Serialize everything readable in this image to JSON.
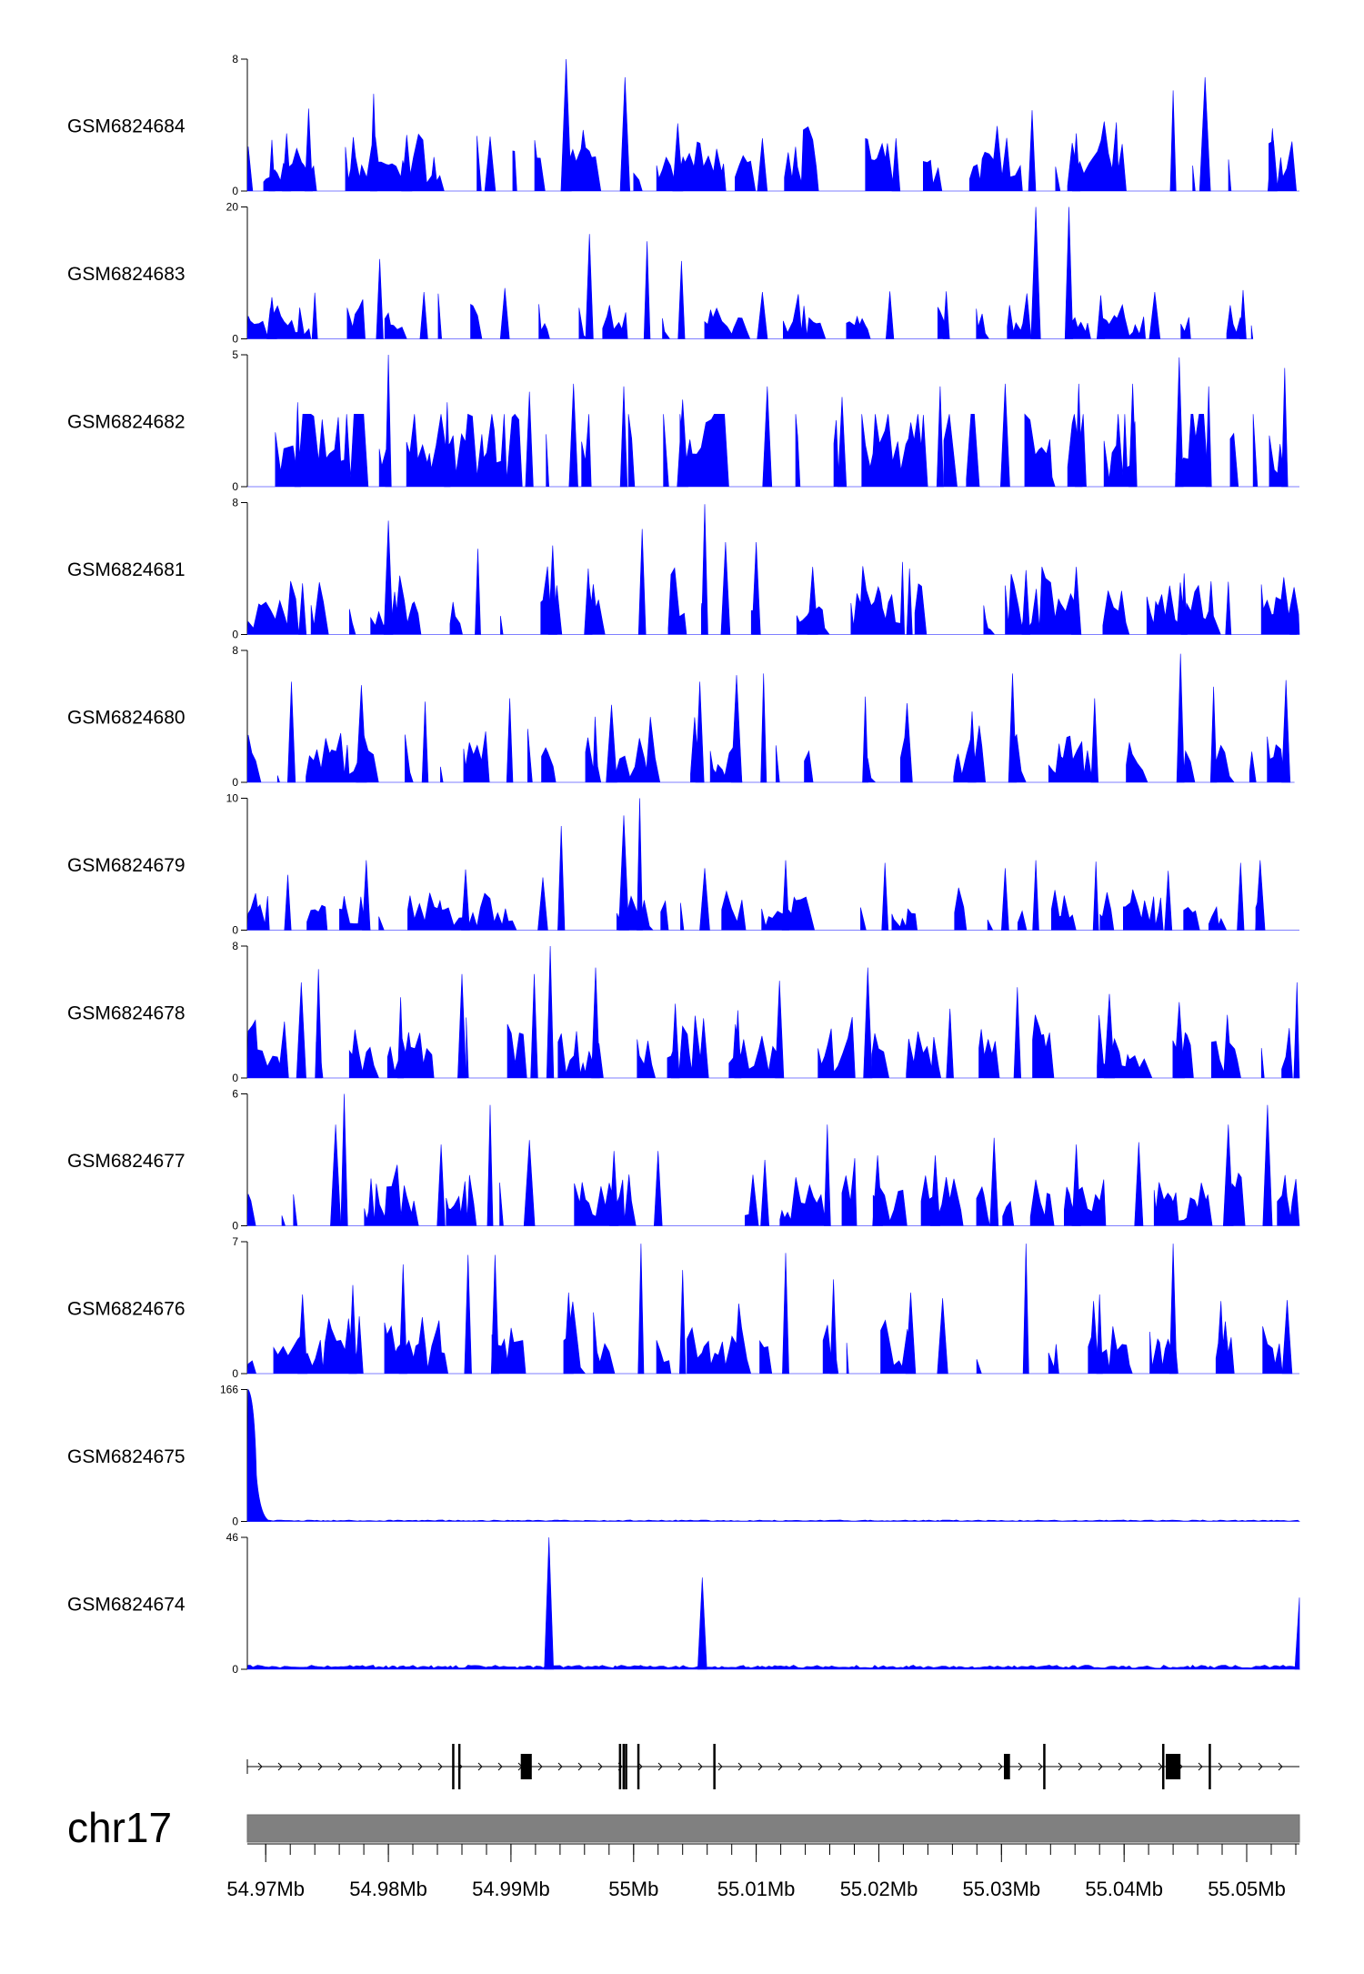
{
  "colors": {
    "signal": "#0000ff",
    "axis": "#000000",
    "ideogram": "#808080",
    "background": "#ffffff"
  },
  "chromosome": "chr17",
  "chart_data": {
    "type": "area",
    "title": "",
    "xlabel": "",
    "ylabel": "",
    "x_range": [
      54.9685,
      55.0543
    ],
    "x_unit": "Mb",
    "x_ticks": [
      54.97,
      54.98,
      54.99,
      55.0,
      55.01,
      55.02,
      55.03,
      55.04,
      55.05
    ],
    "x_tick_labels": [
      "54.97Mb",
      "54.98Mb",
      "54.99Mb",
      "55Mb",
      "55.01Mb",
      "55.02Mb",
      "55.03Mb",
      "55.04Mb",
      "55.05Mb"
    ],
    "tracks": [
      {
        "name": "GSM6824684",
        "ymin": 0,
        "ymax": 8,
        "ymin_label": "0",
        "ymax_label": "8",
        "peaks": [
          [
            54.9705,
            3.1
          ],
          [
            54.9717,
            3.5
          ],
          [
            54.9735,
            5.0
          ],
          [
            54.9788,
            5.9
          ],
          [
            54.9815,
            3.4
          ],
          [
            54.9883,
            3.3
          ],
          [
            54.9945,
            8.0
          ],
          [
            54.9993,
            6.9
          ],
          [
            55.0036,
            4.1
          ],
          [
            55.0105,
            3.2
          ],
          [
            55.0214,
            3.2
          ],
          [
            55.0325,
            4.9
          ],
          [
            55.0361,
            3.5
          ],
          [
            55.044,
            6.1
          ],
          [
            55.0466,
            6.9
          ],
          [
            55.0521,
            3.8
          ]
        ],
        "baseline": 1.4
      },
      {
        "name": "GSM6824683",
        "ymin": 0,
        "ymax": 20,
        "ymin_label": "0",
        "ymax_label": "20",
        "peaks": [
          [
            54.9705,
            6.3
          ],
          [
            54.974,
            7.0
          ],
          [
            54.9793,
            12.1
          ],
          [
            54.9829,
            7.1
          ],
          [
            54.9895,
            7.7
          ],
          [
            54.9964,
            15.9
          ],
          [
            55.0011,
            14.8
          ],
          [
            55.0039,
            11.8
          ],
          [
            55.0105,
            7.1
          ],
          [
            55.0209,
            7.2
          ],
          [
            55.0255,
            7.2
          ],
          [
            55.0328,
            20.0
          ],
          [
            55.0355,
            20.0
          ],
          [
            55.0381,
            6.6
          ],
          [
            55.0425,
            7.1
          ],
          [
            55.0497,
            7.4
          ]
        ],
        "baseline": 2.2,
        "end": 55.0505
      },
      {
        "name": "GSM6824682",
        "ymin": 0,
        "ymax": 5,
        "ymin_label": "0",
        "ymax_label": "5",
        "peaks": [
          [
            54.9726,
            3.2
          ],
          [
            54.98,
            5.0
          ],
          [
            54.9848,
            3.2
          ],
          [
            54.9915,
            3.6
          ],
          [
            54.9951,
            3.9
          ],
          [
            54.9992,
            3.8
          ],
          [
            55.004,
            3.3
          ],
          [
            55.0109,
            3.8
          ],
          [
            55.017,
            3.4
          ],
          [
            55.025,
            3.8
          ],
          [
            55.0303,
            3.9
          ],
          [
            55.0363,
            3.9
          ],
          [
            55.0407,
            3.9
          ],
          [
            55.0445,
            4.9
          ],
          [
            55.0469,
            3.8
          ],
          [
            55.0531,
            4.5
          ]
        ],
        "baseline": 1.4
      },
      {
        "name": "GSM6824681",
        "ymin": 0,
        "ymax": 8,
        "ymin_label": "0",
        "ymax_label": "8",
        "peaks": [
          [
            54.973,
            3.1
          ],
          [
            54.98,
            6.9
          ],
          [
            54.9873,
            5.2
          ],
          [
            54.9934,
            5.4
          ],
          [
            54.9963,
            4.0
          ],
          [
            55.0007,
            6.4
          ],
          [
            55.0058,
            7.9
          ],
          [
            55.0075,
            5.6
          ],
          [
            55.01,
            5.6
          ],
          [
            55.0146,
            4.1
          ],
          [
            55.0225,
            4.0
          ],
          [
            55.032,
            3.9
          ],
          [
            55.0361,
            4.1
          ],
          [
            55.0449,
            3.7
          ],
          [
            55.0485,
            3.2
          ],
          [
            55.0538,
            2.3
          ]
        ],
        "baseline": 1.4
      },
      {
        "name": "GSM6824680",
        "ymin": 0,
        "ymax": 8,
        "ymin_label": "0",
        "ymax_label": "8",
        "peaks": [
          [
            54.9721,
            6.1
          ],
          [
            54.9778,
            5.9
          ],
          [
            54.983,
            4.9
          ],
          [
            54.9899,
            5.1
          ],
          [
            54.9982,
            4.7
          ],
          [
            55.0054,
            6.1
          ],
          [
            55.0084,
            6.5
          ],
          [
            55.0106,
            6.6
          ],
          [
            55.0189,
            5.2
          ],
          [
            55.0223,
            4.8
          ],
          [
            55.0276,
            4.3
          ],
          [
            55.0309,
            6.6
          ],
          [
            55.0376,
            5.1
          ],
          [
            55.0446,
            7.8
          ],
          [
            55.0473,
            5.8
          ],
          [
            55.0532,
            6.2
          ]
        ],
        "baseline": 1.3,
        "end": 55.0539
      },
      {
        "name": "GSM6824679",
        "ymin": 0,
        "ymax": 10,
        "ymin_label": "0",
        "ymax_label": "10",
        "peaks": [
          [
            54.9718,
            4.2
          ],
          [
            54.9782,
            5.3
          ],
          [
            54.9863,
            4.6
          ],
          [
            54.9926,
            4.0
          ],
          [
            54.9941,
            7.9
          ],
          [
            54.9992,
            8.7
          ],
          [
            55.0005,
            10.0
          ],
          [
            55.0058,
            4.7
          ],
          [
            55.0124,
            5.3
          ],
          [
            55.0205,
            5.1
          ],
          [
            55.0303,
            4.7
          ],
          [
            55.0328,
            5.3
          ],
          [
            55.0377,
            5.2
          ],
          [
            55.0436,
            4.5
          ],
          [
            55.0495,
            5.1
          ],
          [
            55.0511,
            5.3
          ]
        ],
        "baseline": 1.2
      },
      {
        "name": "GSM6824678",
        "ymin": 0,
        "ymax": 8,
        "ymin_label": "0",
        "ymax_label": "8",
        "peaks": [
          [
            54.9729,
            5.8
          ],
          [
            54.9743,
            6.6
          ],
          [
            54.981,
            4.9
          ],
          [
            54.986,
            6.3
          ],
          [
            54.9919,
            6.3
          ],
          [
            54.9932,
            8.0
          ],
          [
            54.9969,
            6.7
          ],
          [
            55.0034,
            4.5
          ],
          [
            55.0085,
            4.1
          ],
          [
            55.0119,
            5.9
          ],
          [
            55.0191,
            6.7
          ],
          [
            55.0258,
            4.2
          ],
          [
            55.0313,
            5.5
          ],
          [
            55.0388,
            5.1
          ],
          [
            55.0445,
            4.6
          ],
          [
            55.0541,
            5.8
          ]
        ],
        "baseline": 1.2
      },
      {
        "name": "GSM6824677",
        "ymin": 0,
        "ymax": 6,
        "ymin_label": "0",
        "ymax_label": "6",
        "peaks": [
          [
            54.9757,
            4.6
          ],
          [
            54.9764,
            6.0
          ],
          [
            54.9843,
            3.7
          ],
          [
            54.9883,
            5.5
          ],
          [
            54.9915,
            3.9
          ],
          [
            54.9984,
            3.4
          ],
          [
            55.002,
            3.4
          ],
          [
            55.0107,
            3.0
          ],
          [
            55.0158,
            4.6
          ],
          [
            55.0199,
            3.2
          ],
          [
            55.0246,
            3.2
          ],
          [
            55.0294,
            4.0
          ],
          [
            55.0361,
            3.7
          ],
          [
            55.0412,
            3.8
          ],
          [
            55.0485,
            4.6
          ],
          [
            55.0517,
            5.5
          ]
        ],
        "baseline": 1.0
      },
      {
        "name": "GSM6824676",
        "ymin": 0,
        "ymax": 7,
        "ymin_label": "0",
        "ymax_label": "7",
        "peaks": [
          [
            54.973,
            4.2
          ],
          [
            54.9771,
            4.7
          ],
          [
            54.9812,
            5.8
          ],
          [
            54.9865,
            6.3
          ],
          [
            54.9887,
            6.3
          ],
          [
            54.9947,
            4.3
          ],
          [
            55.0006,
            6.9
          ],
          [
            55.004,
            5.5
          ],
          [
            55.0124,
            6.4
          ],
          [
            55.0163,
            5.0
          ],
          [
            55.0226,
            4.3
          ],
          [
            55.0252,
            4.0
          ],
          [
            55.032,
            6.9
          ],
          [
            55.038,
            4.2
          ],
          [
            55.044,
            6.9
          ],
          [
            55.0533,
            3.9
          ]
        ],
        "baseline": 1.3
      },
      {
        "name": "GSM6824675",
        "ymin": 0,
        "ymax": 166,
        "ymin_label": "0",
        "ymax_label": "166",
        "peaks": [
          [
            54.9686,
            166
          ]
        ],
        "baseline": 1.5
      },
      {
        "name": "GSM6824674",
        "ymin": 0,
        "ymax": 46,
        "ymin_label": "0",
        "ymax_label": "46",
        "peaks": [
          [
            54.9931,
            46
          ],
          [
            55.0056,
            32
          ],
          [
            55.0543,
            25
          ]
        ],
        "baseline": 1.2
      }
    ],
    "gene_model": {
      "strand": "+",
      "start": 54.9685,
      "end": 55.0543,
      "exons": [
        [
          54.9852,
          54.9853
        ],
        [
          54.9857,
          54.9858
        ],
        [
          54.9908,
          54.9917
        ],
        [
          54.9988,
          54.9989
        ],
        [
          54.9991,
          54.9992
        ],
        [
          54.9993,
          54.9994
        ],
        [
          55.0003,
          55.0004
        ],
        [
          55.0065,
          55.0066
        ],
        [
          55.0302,
          55.0307
        ],
        [
          55.0334,
          55.0335
        ],
        [
          55.0431,
          55.0432
        ],
        [
          55.0434,
          55.0446
        ],
        [
          55.0469,
          55.047
        ]
      ]
    }
  }
}
